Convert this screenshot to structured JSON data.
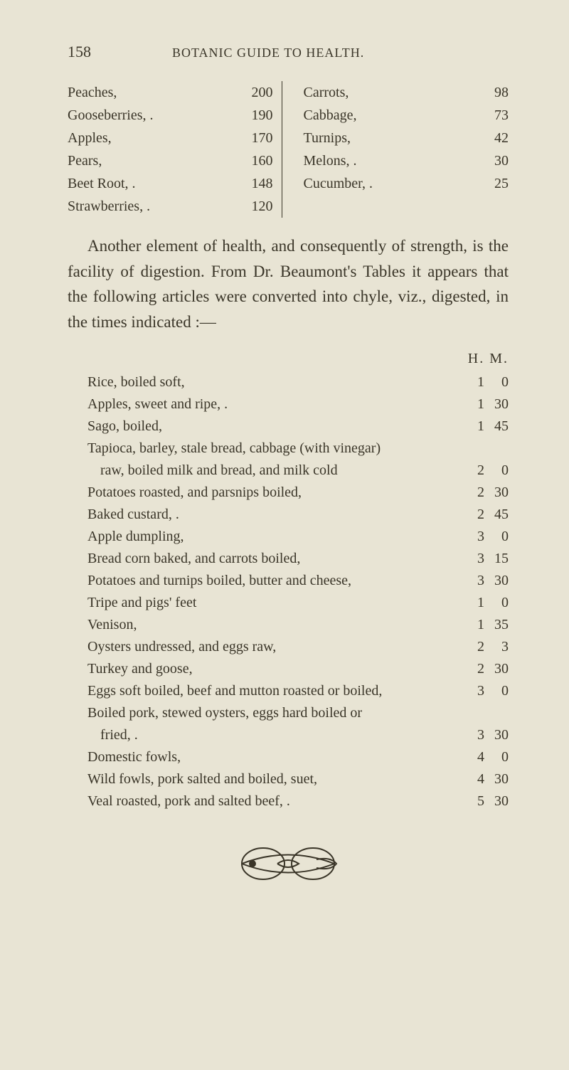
{
  "page": {
    "number": "158",
    "running_head": "BOTANIC GUIDE TO HEALTH."
  },
  "nutritive": {
    "left": [
      {
        "label": "Peaches,",
        "value": "200"
      },
      {
        "label": "Gooseberries, .",
        "value": "190"
      },
      {
        "label": "Apples,",
        "value": "170"
      },
      {
        "label": "Pears,",
        "value": "160"
      },
      {
        "label": "Beet Root, .",
        "value": "148"
      },
      {
        "label": "Strawberries, .",
        "value": "120"
      }
    ],
    "right": [
      {
        "label": "Carrots,",
        "value": "98"
      },
      {
        "label": "Cabbage,",
        "value": "73"
      },
      {
        "label": "Turnips,",
        "value": "42"
      },
      {
        "label": "Melons, .",
        "value": "30"
      },
      {
        "label": "Cucumber, .",
        "value": "25"
      }
    ]
  },
  "paragraph": "Another element of health, and consequently of strength, is the facility of digestion. From Dr. Beaumont's Tables it appears that the following articles were converted into chyle, viz., digested, in the times indicated :—",
  "digest": {
    "header": {
      "h": "H.",
      "m": "M."
    },
    "rows": [
      {
        "label": "Rice, boiled soft,",
        "h": "1",
        "m": "0"
      },
      {
        "label": "Apples, sweet and ripe, .",
        "h": "1",
        "m": "30"
      },
      {
        "label": "Sago, boiled,",
        "h": "1",
        "m": "45"
      },
      {
        "label": "Tapioca, barley, stale bread, cabbage (with vinegar)",
        "h": "",
        "m": ""
      },
      {
        "label": "raw, boiled milk and bread, and milk cold",
        "cont": true,
        "h": "2",
        "m": "0"
      },
      {
        "label": "Potatoes roasted, and parsnips boiled,",
        "h": "2",
        "m": "30"
      },
      {
        "label": "Baked custard, .",
        "h": "2",
        "m": "45"
      },
      {
        "label": "Apple dumpling,",
        "h": "3",
        "m": "0"
      },
      {
        "label": "Bread corn baked, and carrots boiled,",
        "h": "3",
        "m": "15"
      },
      {
        "label": "Potatoes and turnips boiled, butter and cheese,",
        "h": "3",
        "m": "30"
      },
      {
        "label": "Tripe and pigs' feet",
        "h": "1",
        "m": "0"
      },
      {
        "label": "Venison,",
        "h": "1",
        "m": "35"
      },
      {
        "label": "Oysters undressed, and eggs raw,",
        "h": "2",
        "m": "3"
      },
      {
        "label": "Turkey and goose,",
        "h": "2",
        "m": "30"
      },
      {
        "label": "Eggs soft boiled, beef and mutton roasted or boiled,",
        "h": "3",
        "m": "0"
      },
      {
        "label": "Boiled pork, stewed oysters, eggs hard boiled or",
        "h": "",
        "m": ""
      },
      {
        "label": "fried, .",
        "cont": true,
        "h": "3",
        "m": "30"
      },
      {
        "label": "Domestic fowls,",
        "h": "4",
        "m": "0"
      },
      {
        "label": "Wild fowls, pork salted and boiled, suet,",
        "h": "4",
        "m": "30"
      },
      {
        "label": "Veal roasted, pork and salted beef, .",
        "h": "5",
        "m": "30"
      }
    ]
  },
  "colors": {
    "background": "#e8e4d4",
    "text": "#3a3528",
    "ornament_stroke": "#3a3528"
  }
}
